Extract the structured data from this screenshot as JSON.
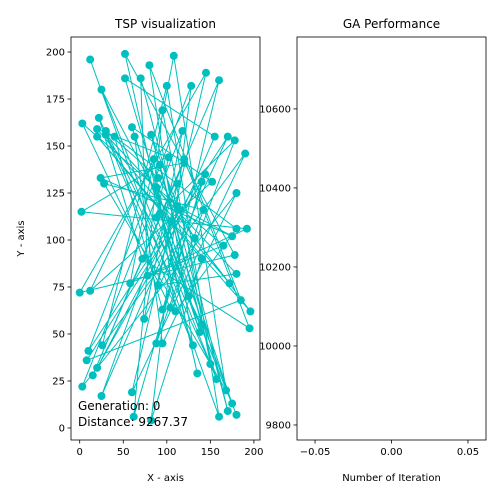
{
  "chart_data": [
    {
      "type": "scatter",
      "title": "TSP visualization",
      "xlabel": "X - axis",
      "ylabel": "Y - axis",
      "xlim": [
        -10,
        207
      ],
      "ylim": [
        -6.4,
        208
      ],
      "xticks": [
        0,
        50,
        100,
        150,
        200
      ],
      "yticks": [
        0,
        25,
        50,
        75,
        100,
        125,
        150,
        175,
        200
      ],
      "annotations": [
        "Generation: 0",
        "Distance: 9267.37"
      ],
      "series": [
        {
          "color": "#00bfbf",
          "x": [
            12,
            160,
            100,
            26,
            190,
            60,
            145,
            0,
            178,
            52,
            135,
            88,
            196,
            20,
            140,
            82,
            128,
            10,
            170,
            74,
            118,
            3,
            180,
            95,
            63,
            175,
            105,
            25,
            157,
            92,
            2,
            192,
            58,
            108,
            168,
            28,
            142,
            88,
            160,
            15,
            120,
            195,
            72,
            22,
            150,
            95,
            62,
            140,
            8,
            185,
            80,
            130,
            30,
            180,
            90,
            112,
            25,
            155,
            52,
            138,
            92,
            178,
            104,
            3,
            165,
            78,
            70,
            170,
            115,
            20,
            144,
            95,
            40,
            180,
            110,
            85,
            12,
            152,
            60,
            125,
            180,
            88,
            102,
            20,
            172,
            132,
            90,
            30,
            140,
            82,
            112,
            175,
            24,
            120
          ],
          "y": [
            196,
            6,
            182,
            44,
            146,
            19,
            189,
            72,
            92,
            199,
            29,
            128,
            62,
            155,
            90,
            4,
            182,
            41,
            155,
            58,
            158,
            22,
            125,
            45,
            155,
            13,
            110,
            180,
            26,
            140,
            115,
            106,
            77,
            198,
            20,
            130,
            116,
            45,
            185,
            28,
            143,
            53,
            90,
            165,
            34,
            169,
            6,
            131,
            36,
            68,
            193,
            44,
            156,
            82,
            76,
            130,
            17,
            155,
            186,
            51,
            114,
            153,
            64,
            162,
            97,
            81,
            186,
            9,
            116,
            32,
            135,
            63,
            155,
            106,
            62,
            143,
            73,
            131,
            160,
            70,
            7,
            112,
            144,
            159,
            77,
            101,
            133,
            158,
            55,
            156,
            118,
            102,
            133,
            141
          ]
        }
      ]
    },
    {
      "type": "line",
      "title": "GA Performance",
      "xlabel": "Number of Iteration",
      "xlim": [
        -0.0618,
        0.0618
      ],
      "ylim": [
        9762,
        10782
      ],
      "xticks": [
        {
          "value": -0.05,
          "label": "−0.05"
        },
        {
          "value": 0,
          "label": "0.00"
        },
        {
          "value": 0.05,
          "label": "0.05"
        }
      ],
      "yticks": [
        9800,
        10000,
        10200,
        10400,
        10600
      ]
    }
  ]
}
